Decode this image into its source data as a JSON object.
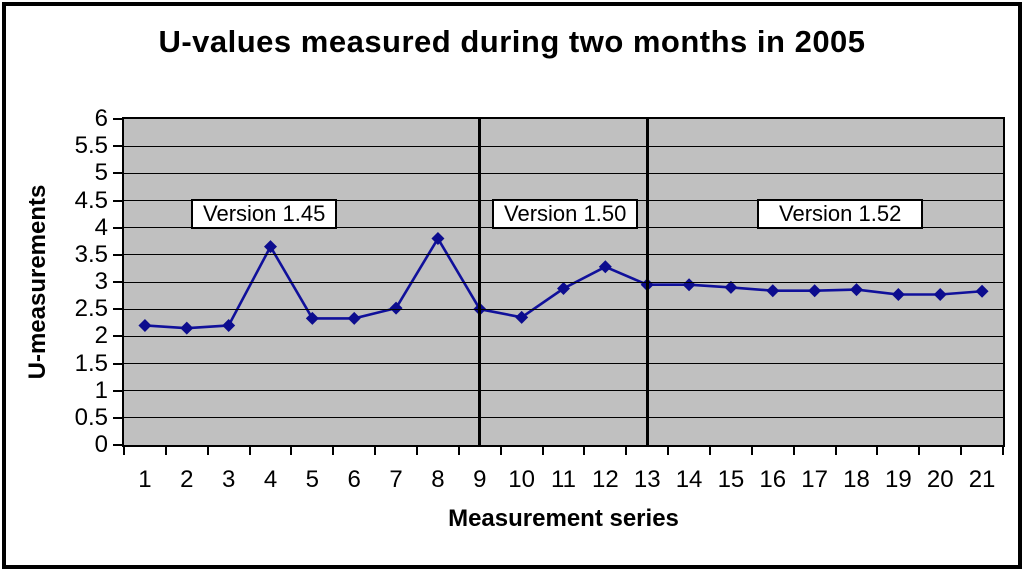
{
  "chart_data": {
    "type": "line",
    "title": "U-values measured during two months in 2005",
    "xlabel": "Measurement series",
    "ylabel": "U-measurements",
    "categories": [
      "1",
      "2",
      "3",
      "4",
      "5",
      "6",
      "7",
      "8",
      "9",
      "10",
      "11",
      "12",
      "13",
      "14",
      "15",
      "16",
      "17",
      "18",
      "19",
      "20",
      "21"
    ],
    "values": [
      2.2,
      2.15,
      2.2,
      3.65,
      2.33,
      2.33,
      2.52,
      3.8,
      2.5,
      2.35,
      2.88,
      3.28,
      2.95,
      2.95,
      2.9,
      2.84,
      2.84,
      2.86,
      2.77,
      2.77,
      2.83
    ],
    "ylim": [
      0,
      6
    ],
    "ytick_step": 0.5,
    "y_tick_labels": [
      "0",
      "0.5",
      "1",
      "1.5",
      "2",
      "2.5",
      "3",
      "3.5",
      "4",
      "4.5",
      "5",
      "5.5",
      "6"
    ],
    "grid": "horizontal",
    "legend_position": "none",
    "dividers_at_series": [
      9,
      13
    ],
    "annotations": [
      {
        "label": "Version 1.45",
        "applies_to": "series 1-8"
      },
      {
        "label": "Version 1.50",
        "applies_to": "series 9-12"
      },
      {
        "label": "Version 1.52",
        "applies_to": "series 13-21"
      }
    ]
  },
  "colors": {
    "line": "#10109B",
    "marker": "#0C0C8E",
    "plot_background": "#C0C0C0",
    "gridline": "#000000",
    "annotation_background": "#FFFFFF",
    "frame_border": "#000000"
  }
}
